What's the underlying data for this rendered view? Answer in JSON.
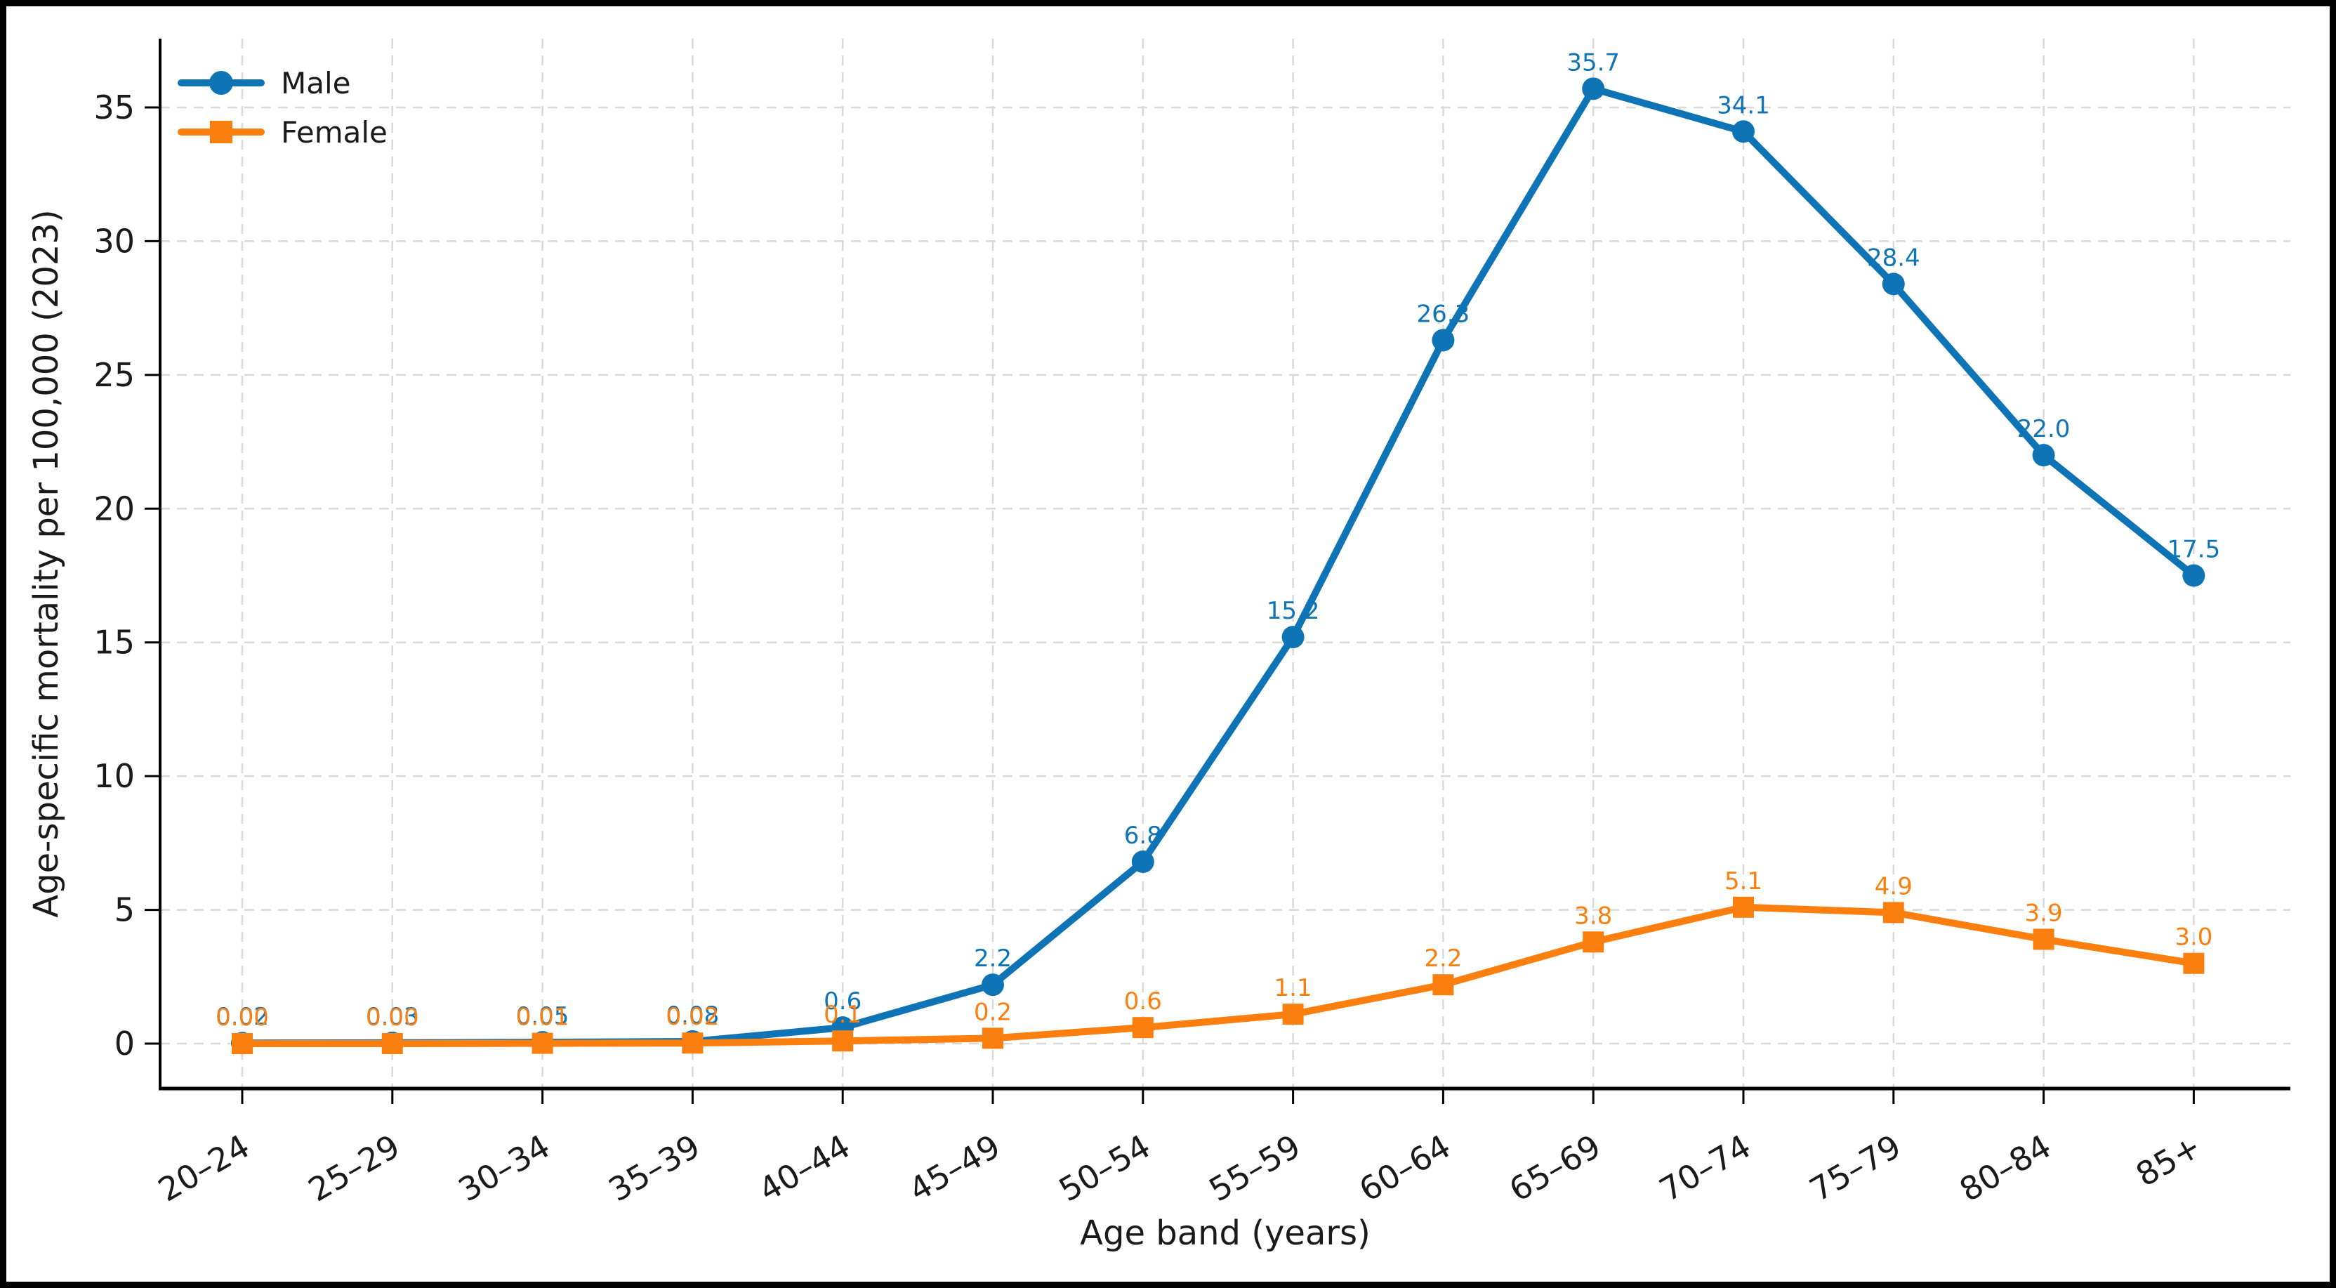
{
  "chart_data": {
    "type": "line",
    "title": "",
    "xlabel": "Age band (years)",
    "ylabel": "Age-specific mortality per 100,000 (2023)",
    "categories": [
      "20–24",
      "25–29",
      "30–34",
      "35–39",
      "40–44",
      "45–49",
      "50–54",
      "55–59",
      "60–64",
      "65–69",
      "70–74",
      "75–79",
      "80–84",
      "85+"
    ],
    "yticks": [
      "0",
      "5",
      "10",
      "15",
      "20",
      "25",
      "30",
      "35"
    ],
    "ytick_values": [
      0,
      5,
      10,
      15,
      20,
      25,
      30,
      35
    ],
    "ylim": [
      -1.75,
      37.65
    ],
    "grid": true,
    "grid_style": "dashed",
    "legend_position": "upper left",
    "series": [
      {
        "name": "Male",
        "color": "#0e74b5",
        "marker": "circle",
        "values": [
          0.02,
          0.03,
          0.05,
          0.08,
          0.6,
          2.2,
          6.8,
          15.2,
          26.3,
          35.7,
          34.1,
          28.4,
          22.0,
          17.5
        ],
        "labels": [
          "0.02",
          "0.03",
          "0.05",
          "0.08",
          "0.6",
          "2.2",
          "6.8",
          "15.2",
          "26.3",
          "35.7",
          "34.1",
          "28.4",
          "22.0",
          "17.5"
        ]
      },
      {
        "name": "Female",
        "color": "#fb7f0e",
        "marker": "square",
        "values": [
          0.0,
          0.0,
          0.01,
          0.02,
          0.1,
          0.2,
          0.6,
          1.1,
          2.2,
          3.8,
          5.1,
          4.9,
          3.9,
          3.0
        ],
        "labels": [
          "0.00",
          "0.00",
          "0.01",
          "0.02",
          "0.1",
          "0.2",
          "0.6",
          "1.1",
          "2.2",
          "3.8",
          "5.1",
          "4.9",
          "3.9",
          "3.0"
        ]
      }
    ],
    "colors": {
      "text": "#1a1a1a",
      "grid": "#d9d9d9",
      "spine": "#000000",
      "frame": "#000000",
      "background": "#ffffff"
    }
  }
}
